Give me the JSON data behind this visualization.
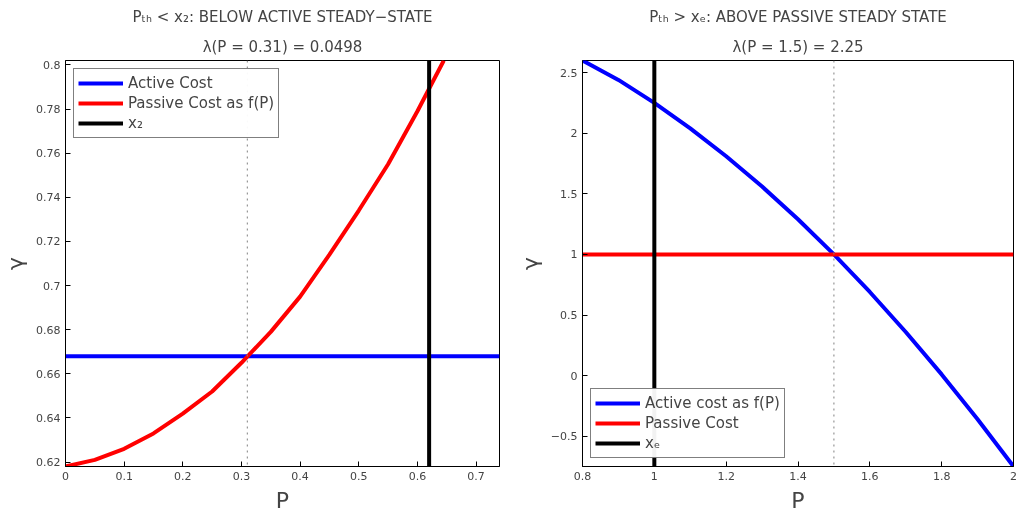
{
  "chart_data": [
    {
      "type": "line",
      "title": "Pₜₕ < x₂: BELOW ACTIVE STEADY−STATE",
      "subtitle": "λ(P = 0.31) = 0.0498",
      "xlabel": "P",
      "ylabel": "γ",
      "x": [
        0,
        0.05,
        0.1,
        0.15,
        0.2,
        0.25,
        0.3,
        0.35,
        0.4,
        0.45,
        0.5,
        0.55,
        0.6,
        0.645
      ],
      "series": [
        {
          "name": "Active Cost",
          "color": "#0000ff",
          "x": [
            0,
            0.74
          ],
          "values": [
            0.668,
            0.668
          ]
        },
        {
          "name": "Passive Cost as f(P)",
          "color": "#ff0000",
          "values": [
            0.618,
            0.621,
            0.626,
            0.633,
            0.642,
            0.652,
            0.665,
            0.679,
            0.695,
            0.714,
            0.734,
            0.755,
            0.779,
            0.802
          ]
        },
        {
          "name": "x₂",
          "color": "#000000",
          "x": [
            0.62,
            0.62
          ],
          "values": [
            0.618,
            0.802
          ]
        }
      ],
      "ref_lines": [
        {
          "axis": "x",
          "value": 0.31,
          "label": null,
          "color": "#808080",
          "line_style": "dotted"
        }
      ],
      "xlim": [
        0,
        0.74
      ],
      "ylim": [
        0.618,
        0.802
      ],
      "xticks": [
        0,
        0.1,
        0.2,
        0.3,
        0.4,
        0.5,
        0.6,
        0.7
      ],
      "yticks": [
        0.62,
        0.64,
        0.66,
        0.68,
        0.7,
        0.72,
        0.74,
        0.76,
        0.78,
        0.8
      ],
      "grid": false,
      "legend": "top left",
      "line_style": "solid",
      "marker": "none"
    },
    {
      "type": "line",
      "title": "Pₜₕ > xₑ: ABOVE PASSIVE STEADY STATE",
      "subtitle": "λ(P = 1.5) = 2.25",
      "xlabel": "P",
      "ylabel": "γ",
      "x": [
        0.8,
        0.9,
        1.0,
        1.1,
        1.2,
        1.3,
        1.4,
        1.5,
        1.6,
        1.7,
        1.8,
        1.9,
        2.0
      ],
      "series": [
        {
          "name": "Active cost as f(P)",
          "color": "#0000ff",
          "values": [
            2.6,
            2.44,
            2.25,
            2.04,
            1.81,
            1.56,
            1.29,
            1.0,
            0.69,
            0.36,
            0.01,
            -0.36,
            -0.75
          ]
        },
        {
          "name": "Passive Cost",
          "color": "#ff0000",
          "x": [
            0.8,
            2.0
          ],
          "values": [
            1,
            1
          ]
        },
        {
          "name": "xₑ",
          "color": "#000000",
          "x": [
            1,
            1
          ],
          "values": [
            -0.75,
            2.6
          ]
        }
      ],
      "ref_lines": [
        {
          "axis": "x",
          "value": 1.5,
          "label": null,
          "color": "#808080",
          "line_style": "dotted"
        }
      ],
      "xlim": [
        0.8,
        2
      ],
      "ylim": [
        -0.75,
        2.6
      ],
      "xticks": [
        0.8,
        1,
        1.2,
        1.4,
        1.6,
        1.8,
        2
      ],
      "yticks": [
        {
          "value": -0.5,
          "label": "−0.5"
        },
        0,
        0.5,
        1,
        1.5,
        2,
        2.5
      ],
      "grid": false,
      "legend": "bottom left",
      "line_style": "solid",
      "marker": "none"
    }
  ]
}
